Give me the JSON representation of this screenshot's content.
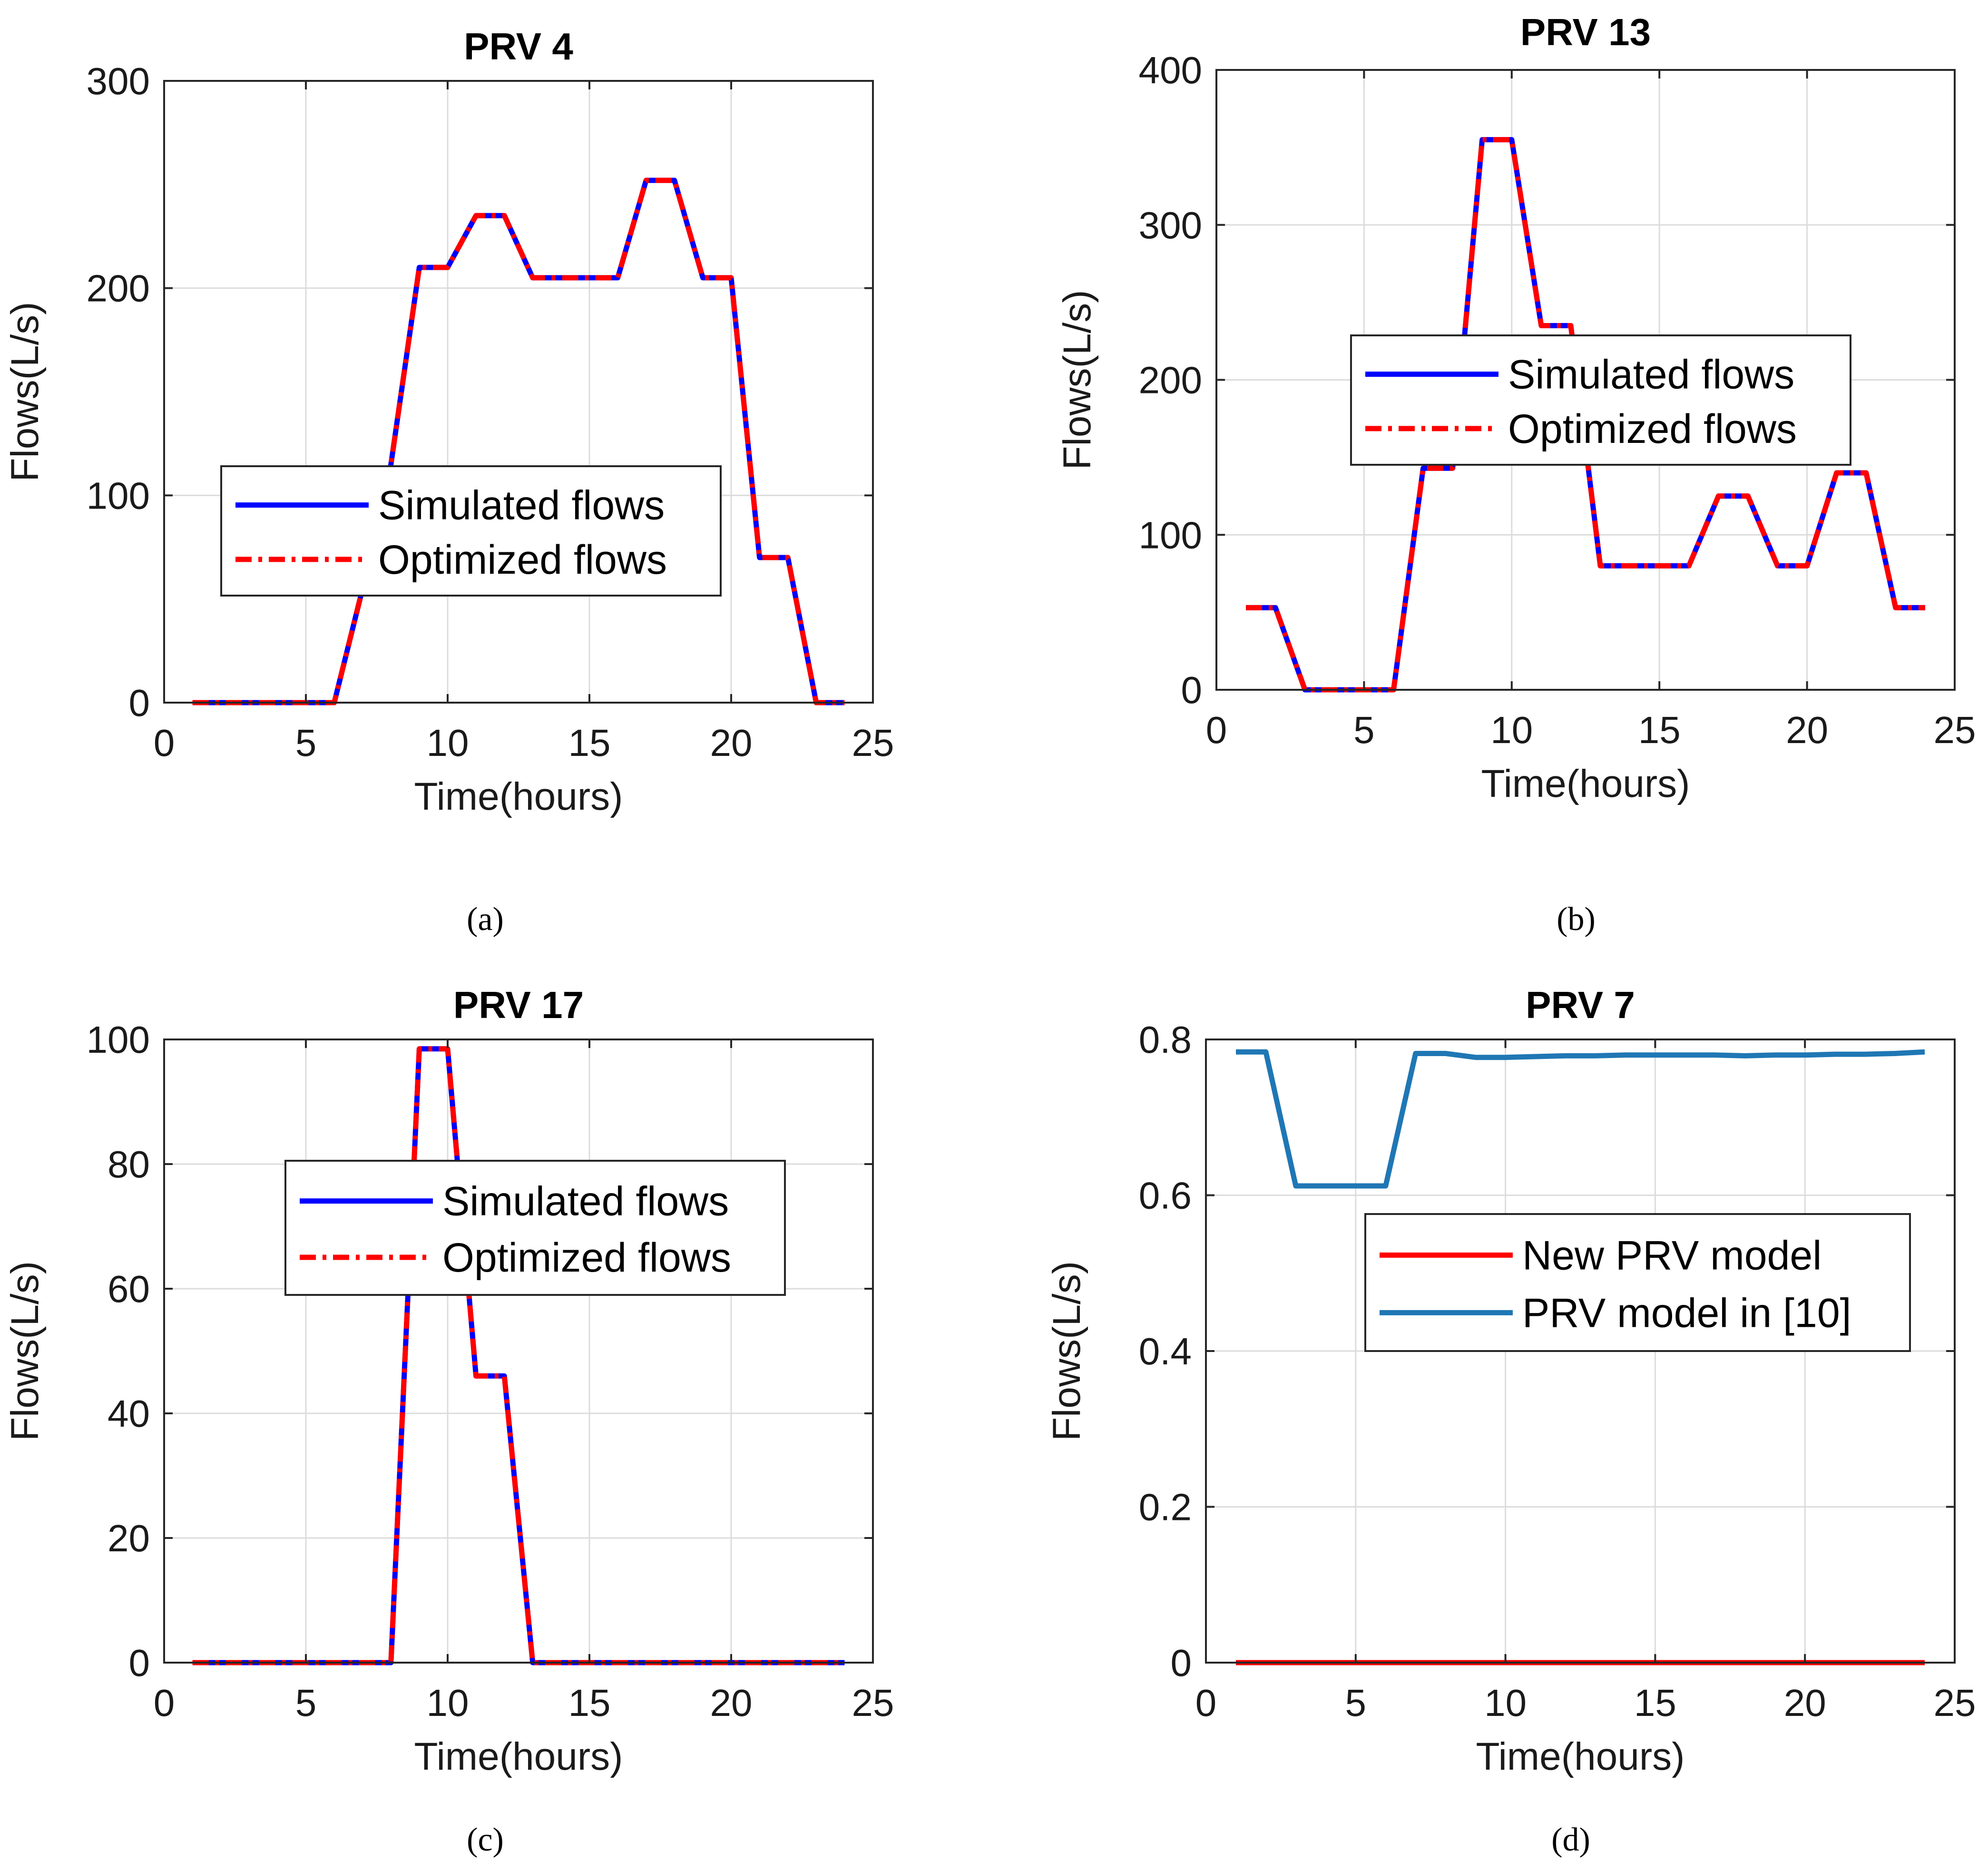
{
  "chart_data": [
    {
      "type": "line",
      "panel": "a",
      "caption": "(a)",
      "title": "PRV 4",
      "xlabel": "Time(hours)",
      "ylabel": "Flows(L/s)",
      "xlim": [
        0,
        25
      ],
      "ylim": [
        0,
        300
      ],
      "xticks": [
        0,
        5,
        10,
        15,
        20,
        25
      ],
      "yticks": [
        0,
        100,
        200,
        300
      ],
      "grid": true,
      "legend_position": "center",
      "x": [
        1,
        2,
        3,
        4,
        5,
        6,
        7,
        8,
        9,
        10,
        11,
        12,
        13,
        14,
        15,
        16,
        17,
        18,
        19,
        20,
        21,
        22,
        23,
        24
      ],
      "series": [
        {
          "name": "Simulated flows",
          "color": "#0000ff",
          "style": "solid",
          "values": [
            0,
            0,
            0,
            0,
            0,
            0,
            55,
            115,
            210,
            210,
            235,
            235,
            205,
            205,
            205,
            205,
            252,
            252,
            205,
            205,
            70,
            70,
            0,
            0
          ]
        },
        {
          "name": "Optimized flows",
          "color": "#ff0000",
          "style": "dashdot",
          "values": [
            0,
            0,
            0,
            0,
            0,
            0,
            55,
            115,
            210,
            210,
            235,
            235,
            205,
            205,
            205,
            205,
            252,
            252,
            205,
            205,
            70,
            70,
            0,
            0
          ]
        }
      ]
    },
    {
      "type": "line",
      "panel": "b",
      "caption": "(b)",
      "title": "PRV 13",
      "xlabel": "Time(hours)",
      "ylabel": "Flows(L/s)",
      "xlim": [
        0,
        25
      ],
      "ylim": [
        0,
        400
      ],
      "xticks": [
        0,
        5,
        10,
        15,
        20,
        25
      ],
      "yticks": [
        0,
        100,
        200,
        300,
        400
      ],
      "grid": true,
      "legend_position": "upper-right",
      "x": [
        1,
        2,
        3,
        4,
        5,
        6,
        7,
        8,
        9,
        10,
        11,
        12,
        13,
        14,
        15,
        16,
        17,
        18,
        19,
        20,
        21,
        22,
        23,
        24
      ],
      "series": [
        {
          "name": "Simulated flows",
          "color": "#0000ff",
          "style": "solid",
          "values": [
            53,
            53,
            0,
            0,
            0,
            0,
            143,
            143,
            355,
            355,
            235,
            235,
            80,
            80,
            80,
            80,
            125,
            125,
            80,
            80,
            140,
            140,
            53,
            53
          ]
        },
        {
          "name": "Optimized flows",
          "color": "#ff0000",
          "style": "dashdot",
          "values": [
            53,
            53,
            0,
            0,
            0,
            0,
            143,
            143,
            355,
            355,
            235,
            235,
            80,
            80,
            80,
            80,
            125,
            125,
            80,
            80,
            140,
            140,
            53,
            53
          ]
        }
      ]
    },
    {
      "type": "line",
      "panel": "c",
      "caption": "(c)",
      "title": "PRV 17",
      "xlabel": "Time(hours)",
      "ylabel": "Flows(L/s)",
      "xlim": [
        0,
        25
      ],
      "ylim": [
        0,
        100
      ],
      "xticks": [
        0,
        5,
        10,
        15,
        20,
        25
      ],
      "yticks": [
        0,
        20,
        40,
        60,
        80,
        100
      ],
      "grid": true,
      "legend_position": "upper-center",
      "x": [
        1,
        2,
        3,
        4,
        5,
        6,
        7,
        8,
        9,
        10,
        11,
        12,
        13,
        14,
        15,
        16,
        17,
        18,
        19,
        20,
        21,
        22,
        23,
        24
      ],
      "series": [
        {
          "name": "Simulated flows",
          "color": "#0000ff",
          "style": "solid",
          "values": [
            0,
            0,
            0,
            0,
            0,
            0,
            0,
            0,
            98.5,
            98.5,
            46,
            46,
            0,
            0,
            0,
            0,
            0,
            0,
            0,
            0,
            0,
            0,
            0,
            0
          ]
        },
        {
          "name": "Optimized flows",
          "color": "#ff0000",
          "style": "dashdot",
          "values": [
            0,
            0,
            0,
            0,
            0,
            0,
            0,
            0,
            98.5,
            98.5,
            46,
            46,
            0,
            0,
            0,
            0,
            0,
            0,
            0,
            0,
            0,
            0,
            0,
            0
          ]
        }
      ]
    },
    {
      "type": "line",
      "panel": "d",
      "caption": "(d)",
      "title": "PRV 7",
      "xlabel": "Time(hours)",
      "ylabel": "Flows(L/s)",
      "xlim": [
        0,
        25
      ],
      "ylim": [
        0,
        0.8
      ],
      "xticks": [
        0,
        5,
        10,
        15,
        20,
        25
      ],
      "yticks": [
        0,
        0.2,
        0.4,
        0.6,
        0.8
      ],
      "grid": true,
      "legend_position": "upper-right",
      "x": [
        1,
        2,
        3,
        4,
        5,
        6,
        7,
        8,
        9,
        10,
        11,
        12,
        13,
        14,
        15,
        16,
        17,
        18,
        19,
        20,
        21,
        22,
        23,
        24
      ],
      "series": [
        {
          "name": "New PRV model",
          "color": "#ff0000",
          "style": "solid",
          "values": [
            0,
            0,
            0,
            0,
            0,
            0,
            0,
            0,
            0,
            0,
            0,
            0,
            0,
            0,
            0,
            0,
            0,
            0,
            0,
            0,
            0,
            0,
            0,
            0
          ]
        },
        {
          "name": "PRV model in [10]",
          "color": "#1f77b4",
          "style": "solid",
          "values": [
            0.784,
            0.784,
            0.612,
            0.612,
            0.612,
            0.612,
            0.782,
            0.782,
            0.777,
            0.777,
            0.778,
            0.779,
            0.779,
            0.78,
            0.78,
            0.78,
            0.78,
            0.779,
            0.78,
            0.78,
            0.781,
            0.781,
            0.782,
            0.784
          ]
        }
      ]
    }
  ]
}
